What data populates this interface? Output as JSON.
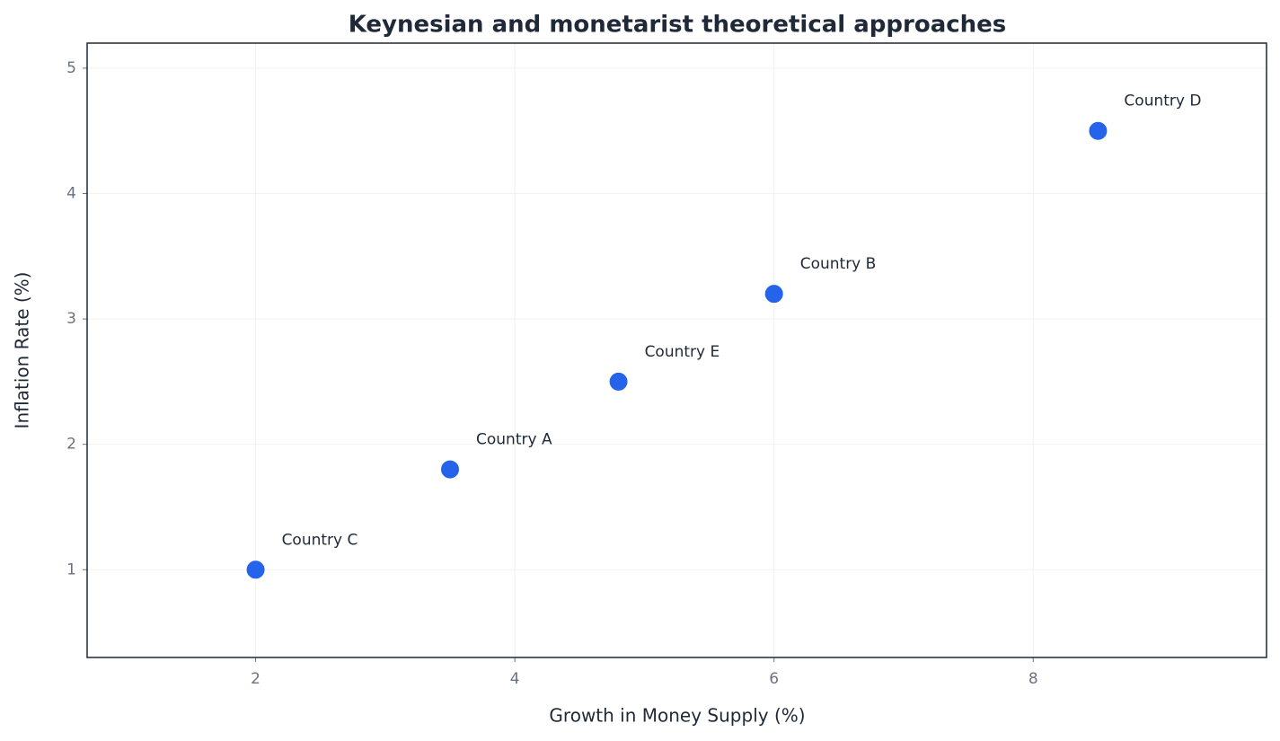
{
  "chart_data": {
    "type": "scatter",
    "title": "Keynesian and monetarist theoretical approaches",
    "x_label": "Growth in Money Supply (%)",
    "y_label": "Inflation Rate (%)",
    "series": [
      {
        "name": null,
        "color": "#2563eb",
        "x": [
          2,
          3.5,
          4.8,
          6,
          8.5
        ],
        "values": [
          1,
          1.8,
          2.5,
          3.2,
          4.5
        ],
        "labels": [
          "Country C",
          "Country A",
          "Country E",
          "Country B",
          "Country D"
        ]
      }
    ],
    "xlim": [
      0.7,
      9.8
    ],
    "xticks": [
      2,
      4,
      6,
      8
    ],
    "ylim": [
      0.3,
      5.2
    ],
    "yticks": [
      1,
      2,
      3,
      4,
      5
    ],
    "grid": true
  }
}
